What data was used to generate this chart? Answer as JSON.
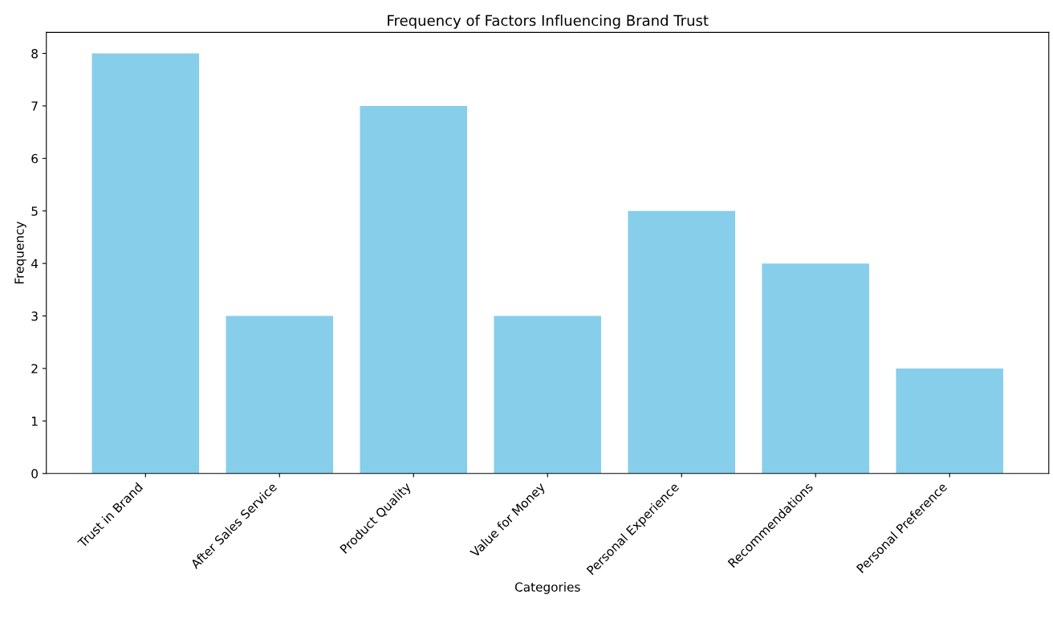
{
  "chart_data": {
    "type": "bar",
    "title": "Frequency of Factors Influencing Brand Trust",
    "xlabel": "Categories",
    "ylabel": "Frequency",
    "categories": [
      "Trust in Brand",
      "After Sales Service",
      "Product Quality",
      "Value for Money",
      "Personal Experience",
      "Recommendations",
      "Personal Preference"
    ],
    "values": [
      8,
      3,
      7,
      3,
      5,
      4,
      2
    ],
    "color": "#87ceeb",
    "ylim": [
      0,
      8.4
    ],
    "yticks": [
      0,
      1,
      2,
      3,
      4,
      5,
      6,
      7,
      8
    ],
    "grid": false
  }
}
